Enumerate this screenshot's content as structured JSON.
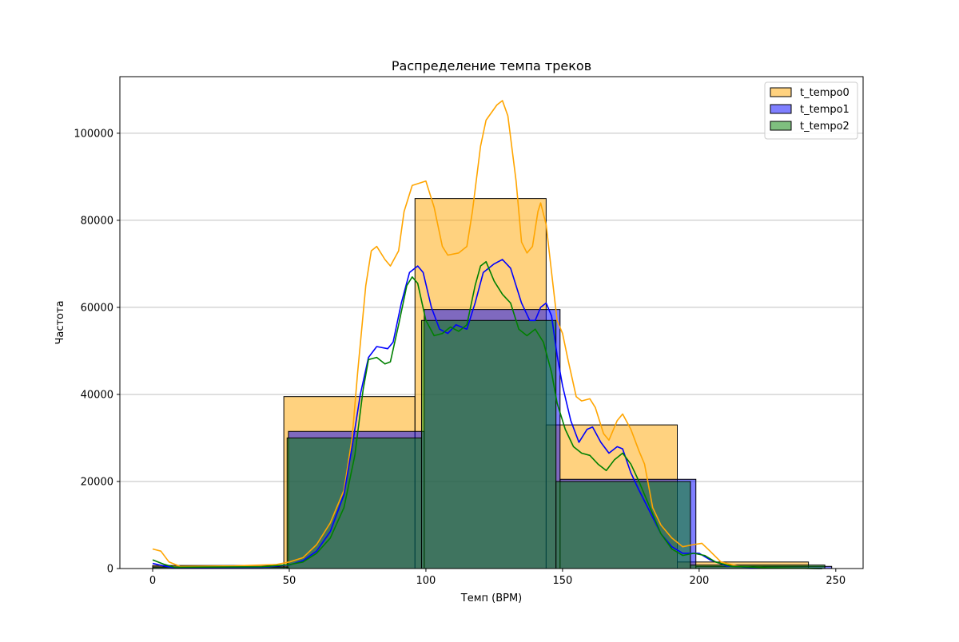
{
  "chart_data": {
    "type": "histogram",
    "title": "Распределение темпа треков",
    "xlabel": "Темп (BPM)",
    "ylabel": "Частота",
    "xlim": [
      -12,
      260
    ],
    "ylim": [
      0,
      113000
    ],
    "x_ticks": [
      0,
      50,
      100,
      150,
      200,
      250
    ],
    "x_tick_labels": [
      "0",
      "50",
      "100",
      "150",
      "200",
      "250"
    ],
    "y_ticks": [
      0,
      20000,
      40000,
      60000,
      80000,
      100000
    ],
    "y_tick_labels": [
      "0",
      "20000",
      "40000",
      "60000",
      "80000",
      "100000"
    ],
    "grid": "horizontal",
    "legend_position": "top-right",
    "series": [
      {
        "name": "t_tempo0",
        "color": "#ffa500",
        "bins": [
          {
            "x0": 0,
            "x1": 48,
            "value": 700
          },
          {
            "x0": 48,
            "x1": 96,
            "value": 39500
          },
          {
            "x0": 96,
            "x1": 144,
            "value": 85000
          },
          {
            "x0": 144,
            "x1": 192,
            "value": 33000
          },
          {
            "x0": 192,
            "x1": 240,
            "value": 1500
          }
        ],
        "kde": [
          [
            0,
            4500
          ],
          [
            3,
            4000
          ],
          [
            6,
            1500
          ],
          [
            10,
            500
          ],
          [
            30,
            600
          ],
          [
            45,
            900
          ],
          [
            50,
            1500
          ],
          [
            55,
            2500
          ],
          [
            60,
            5500
          ],
          [
            65,
            10500
          ],
          [
            70,
            18000
          ],
          [
            73,
            30000
          ],
          [
            75,
            45000
          ],
          [
            78,
            65000
          ],
          [
            80,
            73000
          ],
          [
            82,
            74000
          ],
          [
            85,
            71000
          ],
          [
            87,
            69500
          ],
          [
            90,
            73000
          ],
          [
            92,
            82000
          ],
          [
            95,
            88000
          ],
          [
            100,
            89000
          ],
          [
            103,
            83000
          ],
          [
            106,
            74000
          ],
          [
            108,
            72000
          ],
          [
            112,
            72500
          ],
          [
            115,
            74000
          ],
          [
            117,
            82000
          ],
          [
            120,
            97000
          ],
          [
            122,
            103000
          ],
          [
            126,
            106500
          ],
          [
            128,
            107500
          ],
          [
            130,
            104000
          ],
          [
            133,
            89000
          ],
          [
            135,
            75000
          ],
          [
            137,
            72500
          ],
          [
            139,
            74000
          ],
          [
            141,
            82000
          ],
          [
            142,
            84000
          ],
          [
            144,
            79000
          ],
          [
            146,
            68000
          ],
          [
            148,
            57000
          ],
          [
            150,
            54000
          ],
          [
            152,
            48000
          ],
          [
            155,
            39500
          ],
          [
            157,
            38500
          ],
          [
            160,
            39000
          ],
          [
            162,
            37000
          ],
          [
            165,
            31000
          ],
          [
            167,
            29500
          ],
          [
            170,
            34000
          ],
          [
            172,
            35500
          ],
          [
            175,
            32000
          ],
          [
            178,
            27000
          ],
          [
            180,
            24000
          ],
          [
            183,
            14000
          ],
          [
            186,
            10000
          ],
          [
            190,
            7000
          ],
          [
            194,
            5000
          ],
          [
            198,
            5500
          ],
          [
            201,
            5800
          ],
          [
            204,
            4000
          ],
          [
            208,
            1500
          ],
          [
            215,
            400
          ],
          [
            230,
            100
          ],
          [
            245,
            0
          ]
        ]
      },
      {
        "name": "t_tempo1",
        "color": "#0000ff",
        "bins": [
          {
            "x0": 0,
            "x1": 49.7,
            "value": 300
          },
          {
            "x0": 49.7,
            "x1": 99.4,
            "value": 31500
          },
          {
            "x0": 99.4,
            "x1": 149.1,
            "value": 59500
          },
          {
            "x0": 149.1,
            "x1": 198.8,
            "value": 20500
          },
          {
            "x0": 198.8,
            "x1": 248.5,
            "value": 500
          }
        ],
        "kde": [
          [
            0,
            1200
          ],
          [
            4,
            600
          ],
          [
            8,
            200
          ],
          [
            40,
            300
          ],
          [
            50,
            800
          ],
          [
            55,
            1800
          ],
          [
            60,
            4000
          ],
          [
            65,
            8500
          ],
          [
            70,
            17000
          ],
          [
            73,
            28000
          ],
          [
            76,
            40000
          ],
          [
            79,
            48500
          ],
          [
            82,
            51000
          ],
          [
            86,
            50500
          ],
          [
            88,
            52000
          ],
          [
            91,
            61000
          ],
          [
            94,
            68000
          ],
          [
            97,
            69500
          ],
          [
            99,
            68000
          ],
          [
            102,
            60000
          ],
          [
            105,
            55000
          ],
          [
            108,
            54000
          ],
          [
            111,
            56000
          ],
          [
            115,
            55000
          ],
          [
            118,
            61000
          ],
          [
            121,
            68000
          ],
          [
            125,
            70000
          ],
          [
            128,
            71000
          ],
          [
            131,
            69000
          ],
          [
            135,
            61000
          ],
          [
            138,
            57000
          ],
          [
            140,
            57000
          ],
          [
            142,
            60000
          ],
          [
            144,
            61000
          ],
          [
            146,
            58000
          ],
          [
            148,
            49000
          ],
          [
            150,
            42000
          ],
          [
            153,
            34000
          ],
          [
            156,
            29000
          ],
          [
            159,
            32000
          ],
          [
            161,
            32500
          ],
          [
            164,
            29000
          ],
          [
            167,
            26500
          ],
          [
            170,
            28000
          ],
          [
            172,
            27500
          ],
          [
            175,
            22000
          ],
          [
            178,
            18000
          ],
          [
            182,
            13000
          ],
          [
            186,
            8000
          ],
          [
            190,
            5000
          ],
          [
            194,
            3500
          ],
          [
            200,
            3500
          ],
          [
            204,
            2000
          ],
          [
            210,
            600
          ],
          [
            220,
            200
          ],
          [
            245,
            0
          ]
        ]
      },
      {
        "name": "t_tempo2",
        "color": "#008000",
        "bins": [
          {
            "x0": 0,
            "x1": 49.2,
            "value": 400
          },
          {
            "x0": 49.2,
            "x1": 98.4,
            "value": 30000
          },
          {
            "x0": 98.4,
            "x1": 147.6,
            "value": 57000
          },
          {
            "x0": 147.6,
            "x1": 196.8,
            "value": 20000
          },
          {
            "x0": 196.8,
            "x1": 246,
            "value": 800
          }
        ],
        "kde": [
          [
            0,
            2000
          ],
          [
            4,
            1000
          ],
          [
            8,
            300
          ],
          [
            40,
            400
          ],
          [
            50,
            900
          ],
          [
            55,
            1500
          ],
          [
            60,
            3500
          ],
          [
            65,
            7000
          ],
          [
            70,
            14000
          ],
          [
            74,
            26000
          ],
          [
            77,
            41000
          ],
          [
            79,
            48000
          ],
          [
            82,
            48500
          ],
          [
            85,
            47000
          ],
          [
            87,
            47500
          ],
          [
            90,
            56000
          ],
          [
            93,
            65000
          ],
          [
            95,
            67000
          ],
          [
            97,
            65500
          ],
          [
            100,
            57000
          ],
          [
            103,
            53500
          ],
          [
            106,
            54000
          ],
          [
            109,
            55500
          ],
          [
            112,
            54500
          ],
          [
            115,
            56000
          ],
          [
            118,
            65000
          ],
          [
            120,
            69500
          ],
          [
            122,
            70500
          ],
          [
            125,
            66000
          ],
          [
            128,
            63000
          ],
          [
            131,
            61000
          ],
          [
            134,
            55000
          ],
          [
            137,
            53500
          ],
          [
            140,
            55000
          ],
          [
            143,
            52000
          ],
          [
            146,
            45000
          ],
          [
            148,
            38000
          ],
          [
            151,
            32000
          ],
          [
            154,
            28000
          ],
          [
            157,
            26500
          ],
          [
            160,
            26000
          ],
          [
            163,
            24000
          ],
          [
            166,
            22500
          ],
          [
            169,
            25000
          ],
          [
            172,
            26500
          ],
          [
            175,
            24000
          ],
          [
            178,
            20000
          ],
          [
            182,
            14000
          ],
          [
            186,
            8000
          ],
          [
            190,
            4500
          ],
          [
            194,
            3000
          ],
          [
            198,
            3500
          ],
          [
            202,
            3000
          ],
          [
            206,
            1500
          ],
          [
            212,
            500
          ],
          [
            225,
            200
          ],
          [
            245,
            0
          ]
        ]
      }
    ]
  }
}
